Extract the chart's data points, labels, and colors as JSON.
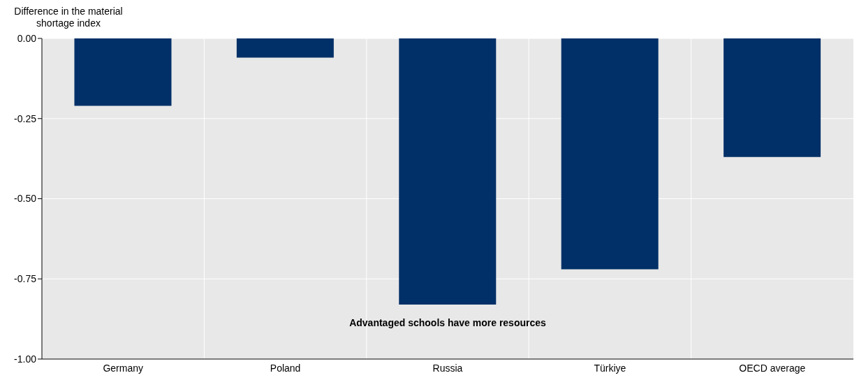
{
  "chart_data": {
    "type": "bar",
    "ylabel": "Difference in the material shortage index",
    "categories": [
      "Germany",
      "Poland",
      "Russia",
      "Türkiye",
      "OECD average"
    ],
    "values": [
      -0.21,
      -0.06,
      -0.83,
      -0.72,
      -0.37
    ],
    "color": "#003067",
    "ylim": [
      -1,
      0
    ],
    "yticks": [
      {
        "value": -1,
        "label": "-1.00"
      },
      {
        "value": -0.75,
        "label": "-0.75"
      },
      {
        "value": -0.5,
        "label": "-0.50"
      },
      {
        "value": -0.25,
        "label": "-0.25"
      },
      {
        "value": 0,
        "label": "0.00"
      }
    ],
    "grid": true,
    "annotations": [
      "Advantaged schools have more resources"
    ]
  }
}
